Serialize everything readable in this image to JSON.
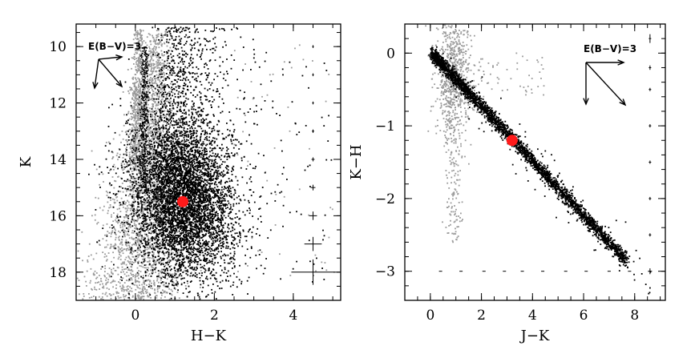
{
  "chart_data": [
    {
      "type": "scatter",
      "xlabel": "H−K",
      "ylabel": "K",
      "xlim": [
        -1.5,
        5.2
      ],
      "ylim": [
        19,
        9.2
      ],
      "y_inverted": true,
      "x_ticks": [
        0,
        2,
        4
      ],
      "x_tick_labels": [
        "0",
        "2",
        "4"
      ],
      "y_ticks": [
        10,
        12,
        14,
        16,
        18
      ],
      "y_tick_labels": [
        "10",
        "12",
        "14",
        "16",
        "18"
      ],
      "grid": false,
      "annotation": "E(B−V)=3",
      "series": [
        {
          "color": "#9a9a9a",
          "values_desc": "foreground sequence, H−K ≈ 0–0.6, K 9.3–19"
        },
        {
          "color": "#000000",
          "values_desc": "dense cloud centred near H−K ≈ 1.2, K ≈ 15.5"
        }
      ],
      "highlight": {
        "x": 1.2,
        "y": 15.5,
        "color": "#ff1a1a"
      },
      "error_bars": [
        {
          "x": 4.5,
          "y": 10.0,
          "xerr": 0.02,
          "yerr": 0.05
        },
        {
          "x": 4.5,
          "y": 11.0,
          "xerr": 0.02,
          "yerr": 0.05
        },
        {
          "x": 4.5,
          "y": 12.0,
          "xerr": 0.02,
          "yerr": 0.05
        },
        {
          "x": 4.5,
          "y": 13.0,
          "xerr": 0.03,
          "yerr": 0.06
        },
        {
          "x": 4.5,
          "y": 14.0,
          "xerr": 0.04,
          "yerr": 0.07
        },
        {
          "x": 4.5,
          "y": 15.0,
          "xerr": 0.06,
          "yerr": 0.1
        },
        {
          "x": 4.5,
          "y": 16.0,
          "xerr": 0.1,
          "yerr": 0.15
        },
        {
          "x": 4.5,
          "y": 17.0,
          "xerr": 0.22,
          "yerr": 0.25
        },
        {
          "x": 4.5,
          "y": 18.0,
          "xerr": 0.55,
          "yerr": 0.45
        }
      ]
    },
    {
      "type": "scatter",
      "xlabel": "J−K",
      "ylabel": "K−H",
      "xlim": [
        -1.0,
        9.2
      ],
      "ylim": [
        -3.4,
        0.4
      ],
      "x_ticks": [
        0,
        2,
        4,
        6,
        8
      ],
      "x_tick_labels": [
        "0",
        "2",
        "4",
        "6",
        "8"
      ],
      "y_ticks": [
        0,
        -1,
        -2,
        -3
      ],
      "y_tick_labels": [
        "0",
        "−1",
        "−2",
        "−3"
      ],
      "grid": false,
      "annotation": "E(B−V)=3",
      "series": [
        {
          "color": "#9a9a9a",
          "values_desc": "points near J−K 0–1.5, K−H 0 to −2.5"
        },
        {
          "color": "#000000",
          "values_desc": "reddening band from (0, 0) to (8, −3)"
        }
      ],
      "highlight": {
        "x": 3.2,
        "y": -1.2,
        "color": "#ff1a1a"
      },
      "error_bars_right": [
        {
          "x": 8.6,
          "y": 0.2,
          "yerr": 0.06
        },
        {
          "x": 8.6,
          "y": -0.2,
          "yerr": 0.03
        },
        {
          "x": 8.6,
          "y": -0.5,
          "yerr": 0.02
        },
        {
          "x": 8.6,
          "y": -1.0,
          "yerr": 0.02
        },
        {
          "x": 8.6,
          "y": -1.5,
          "yerr": 0.02
        },
        {
          "x": 8.6,
          "y": -2.0,
          "yerr": 0.02
        },
        {
          "x": 8.6,
          "y": -2.5,
          "yerr": 0.02
        },
        {
          "x": 8.6,
          "y": -3.0,
          "yerr": 0.04
        }
      ],
      "error_bars_bottom": [
        {
          "x": 0.4,
          "y": -3.0,
          "xerr": 0.03
        },
        {
          "x": 1.2,
          "y": -3.0,
          "xerr": 0.03
        },
        {
          "x": 2.1,
          "y": -3.0,
          "xerr": 0.03
        },
        {
          "x": 2.9,
          "y": -3.0,
          "xerr": 0.03
        },
        {
          "x": 3.6,
          "y": -3.0,
          "xerr": 0.03
        },
        {
          "x": 4.4,
          "y": -3.0,
          "xerr": 0.03
        },
        {
          "x": 5.3,
          "y": -3.0,
          "xerr": 0.04
        },
        {
          "x": 6.1,
          "y": -3.0,
          "xerr": 0.05
        },
        {
          "x": 7.0,
          "y": -3.0,
          "xerr": 0.05
        },
        {
          "x": 7.8,
          "y": -3.0,
          "xerr": 0.06
        },
        {
          "x": 8.6,
          "y": -3.0,
          "xerr": 0.08
        }
      ]
    }
  ]
}
